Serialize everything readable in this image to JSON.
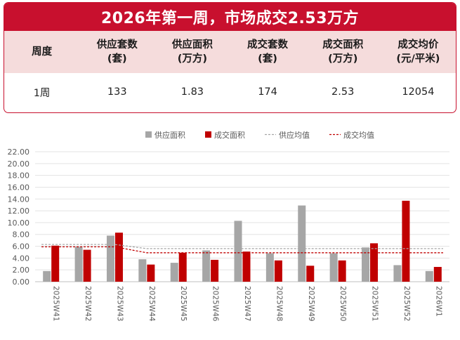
{
  "header": {
    "title": "2026年第一周，市场成交2.53万方"
  },
  "table": {
    "headers": [
      [
        "周度"
      ],
      [
        "供应套数",
        "(套)"
      ],
      [
        "供应面积",
        "(万方)"
      ],
      [
        "成交套数",
        "(套)"
      ],
      [
        "成交面积",
        "(万方)"
      ],
      [
        "成交均价",
        "(元/平米)"
      ]
    ],
    "row": [
      "1周",
      "133",
      "1.83",
      "174",
      "2.53",
      "12054"
    ]
  },
  "chart_data": {
    "type": "bar",
    "categories": [
      "2025W41",
      "2025W42",
      "2025W43",
      "2025W44",
      "2025W45",
      "2025W46",
      "2025W47",
      "2025W48",
      "2025W49",
      "2025W50",
      "2025W51",
      "2025W52",
      "2026W1"
    ],
    "series": [
      {
        "name": "供应面积",
        "kind": "bar",
        "color": "#a6a6a6",
        "values": [
          1.8,
          5.9,
          7.8,
          3.8,
          3.2,
          5.3,
          10.3,
          4.8,
          12.9,
          4.8,
          5.8,
          2.8,
          1.8
        ]
      },
      {
        "name": "成交面积",
        "kind": "bar",
        "color": "#c00000",
        "values": [
          6.1,
          5.4,
          8.3,
          2.9,
          4.9,
          3.7,
          5.1,
          3.6,
          2.7,
          3.6,
          6.5,
          13.7,
          2.5
        ]
      },
      {
        "name": "供应均值",
        "kind": "line",
        "style": "dashed",
        "color": "#a6a6a6",
        "values": [
          6.3,
          6.3,
          6.3,
          5.6,
          5.6,
          5.6,
          5.6,
          5.6,
          5.6,
          5.6,
          5.6,
          5.6,
          5.6
        ]
      },
      {
        "name": "成交均值",
        "kind": "line",
        "style": "dashed",
        "color": "#c00000",
        "values": [
          5.9,
          5.9,
          5.9,
          4.9,
          4.9,
          4.9,
          4.9,
          4.9,
          4.9,
          4.9,
          4.9,
          4.9,
          4.9
        ]
      }
    ],
    "ylim": [
      0,
      22
    ],
    "yticks": [
      "0.00",
      "2.00",
      "4.00",
      "6.00",
      "8.00",
      "10.00",
      "12.00",
      "14.00",
      "16.00",
      "18.00",
      "20.00",
      "22.00"
    ],
    "grid": true,
    "legend": "top"
  }
}
